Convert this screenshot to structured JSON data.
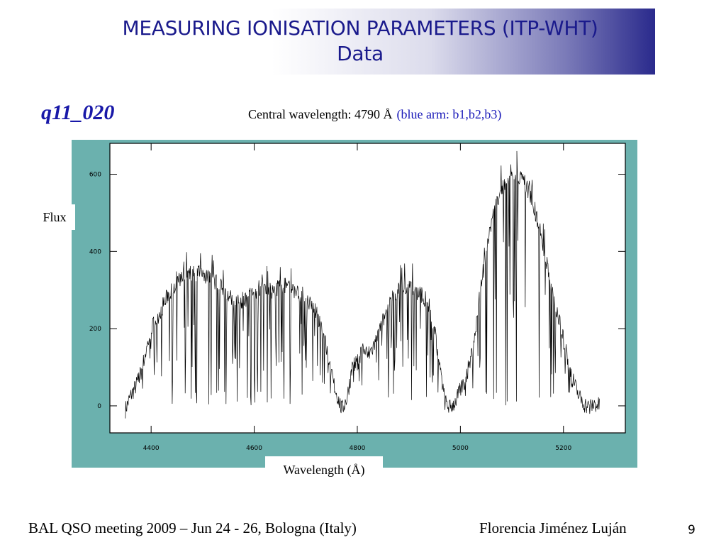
{
  "slide": {
    "title_line1": "MEASURING IONISATION PARAMETERS (ITP-WHT)",
    "title_line2": "Data",
    "spectrum_id": "q11_020",
    "central_wavelength": "Central wavelength: 4790 Å",
    "arm_info": "(blue arm: b1,b2,b3)",
    "footer_left": "BAL QSO meeting 2009 – Jun 24 - 26, Bologna (Italy)",
    "footer_right": "Florencia Jiménez Luján",
    "page_number": "9",
    "colors": {
      "title": "#1a1a8c",
      "accent": "#1818a8",
      "plot_frame": "#6bb1ae",
      "title_gradient_end": "#2a2a8c"
    }
  },
  "chart_data": {
    "type": "line",
    "xlabel": "Wavelength (Å)",
    "ylabel": "Flux",
    "xlim": [
      4320,
      5320
    ],
    "ylim": [
      -70,
      680
    ],
    "x_ticks": [
      4400,
      4600,
      4800,
      5000,
      5200
    ],
    "y_ticks": [
      0,
      200,
      400,
      600
    ],
    "x_tick_labels": [
      "4400",
      "4600",
      "4800",
      "5000",
      "5200"
    ],
    "y_tick_labels": [
      "0",
      "200",
      "400",
      "600"
    ],
    "grid": false,
    "series": [
      {
        "line_color": "#000000",
        "points": [
          [
            4350,
            -10
          ],
          [
            4360,
            25
          ],
          [
            4370,
            50
          ],
          [
            4380,
            85
          ],
          [
            4390,
            140
          ],
          [
            4400,
            200
          ],
          [
            4410,
            225
          ],
          [
            4420,
            250
          ],
          [
            4430,
            280
          ],
          [
            4440,
            300
          ],
          [
            4450,
            320
          ],
          [
            4460,
            335
          ],
          [
            4470,
            345
          ],
          [
            4480,
            340
          ],
          [
            4490,
            345
          ],
          [
            4500,
            340
          ],
          [
            4510,
            335
          ],
          [
            4520,
            325
          ],
          [
            4530,
            315
          ],
          [
            4540,
            300
          ],
          [
            4550,
            285
          ],
          [
            4560,
            270
          ],
          [
            4570,
            270
          ],
          [
            4580,
            275
          ],
          [
            4590,
            285
          ],
          [
            4600,
            295
          ],
          [
            4610,
            305
          ],
          [
            4620,
            305
          ],
          [
            4630,
            300
          ],
          [
            4640,
            300
          ],
          [
            4650,
            310
          ],
          [
            4660,
            310
          ],
          [
            4670,
            305
          ],
          [
            4680,
            295
          ],
          [
            4690,
            290
          ],
          [
            4700,
            280
          ],
          [
            4710,
            260
          ],
          [
            4720,
            240
          ],
          [
            4730,
            210
          ],
          [
            4740,
            150
          ],
          [
            4750,
            80
          ],
          [
            4760,
            30
          ],
          [
            4770,
            -10
          ],
          [
            4780,
            20
          ],
          [
            4790,
            100
          ],
          [
            4800,
            110
          ],
          [
            4810,
            150
          ],
          [
            4820,
            130
          ],
          [
            4830,
            150
          ],
          [
            4840,
            180
          ],
          [
            4850,
            220
          ],
          [
            4860,
            260
          ],
          [
            4870,
            280
          ],
          [
            4880,
            300
          ],
          [
            4890,
            305
          ],
          [
            4900,
            305
          ],
          [
            4910,
            300
          ],
          [
            4920,
            290
          ],
          [
            4930,
            280
          ],
          [
            4940,
            260
          ],
          [
            4950,
            200
          ],
          [
            4960,
            100
          ],
          [
            4970,
            10
          ],
          [
            4980,
            -5
          ],
          [
            4990,
            10
          ],
          [
            5000,
            40
          ],
          [
            5010,
            70
          ],
          [
            5020,
            120
          ],
          [
            5030,
            200
          ],
          [
            5040,
            310
          ],
          [
            5050,
            400
          ],
          [
            5060,
            470
          ],
          [
            5070,
            520
          ],
          [
            5080,
            560
          ],
          [
            5090,
            585
          ],
          [
            5100,
            595
          ],
          [
            5110,
            600
          ],
          [
            5120,
            590
          ],
          [
            5130,
            565
          ],
          [
            5140,
            530
          ],
          [
            5150,
            480
          ],
          [
            5160,
            420
          ],
          [
            5170,
            350
          ],
          [
            5180,
            290
          ],
          [
            5190,
            230
          ],
          [
            5200,
            170
          ],
          [
            5210,
            110
          ],
          [
            5220,
            60
          ],
          [
            5230,
            25
          ],
          [
            5240,
            5
          ],
          [
            5250,
            -5
          ],
          [
            5260,
            5
          ],
          [
            5270,
            0
          ]
        ]
      }
    ]
  }
}
